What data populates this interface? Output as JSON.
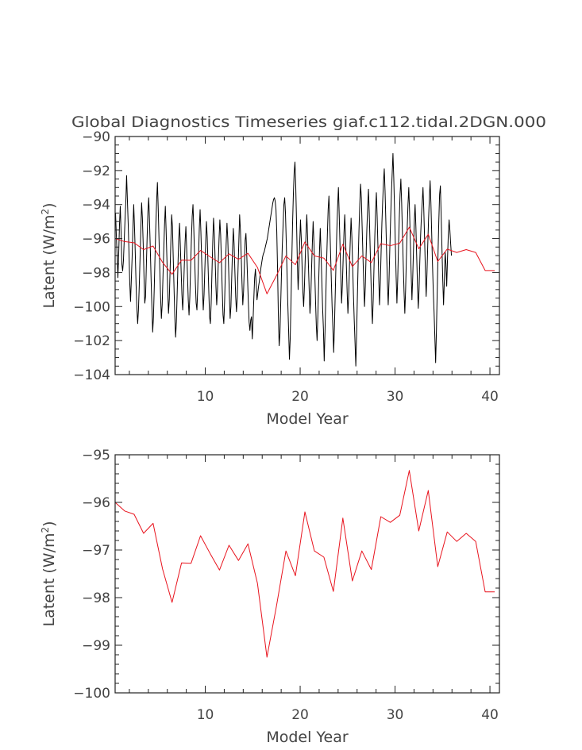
{
  "chart_data": [
    {
      "type": "line",
      "title": "Global Diagnostics Timeseries giaf.c112.tidal.2DGN.000",
      "xlabel": "Model Year",
      "ylabel": "Latent (W/m²)",
      "ylabel_main": "Latent (W/m",
      "ylabel_sup": "2",
      "ylabel_close": ")",
      "xlim": [
        0.5,
        41
      ],
      "ylim": [
        -104,
        -90
      ],
      "xticks": [
        10,
        20,
        30,
        40
      ],
      "yticks": [
        -104,
        -102,
        -100,
        -98,
        -96,
        -94,
        -92,
        -90
      ],
      "grid": false,
      "series": [
        {
          "color": "#000000",
          "x_start": 0.542,
          "x_step": 0.0833,
          "values": [
            -94.5,
            -95.8,
            -97.0,
            -98.3,
            -96.9,
            -95.2,
            -94.1,
            -95.6,
            -97.5,
            -97.9,
            -97.3,
            -96.1,
            -94.9,
            -93.9,
            -92.3,
            -93.7,
            -95.1,
            -96.8,
            -98.6,
            -99.7,
            -98.4,
            -97.1,
            -95.4,
            -94.0,
            -95.3,
            -96.9,
            -98.7,
            -100.1,
            -101.0,
            -100.2,
            -98.8,
            -97.2,
            -95.5,
            -93.9,
            -94.8,
            -96.3,
            -98.2,
            -99.8,
            -99.4,
            -97.6,
            -95.9,
            -94.4,
            -93.6,
            -95.0,
            -96.6,
            -98.4,
            -100.0,
            -101.5,
            -100.6,
            -98.9,
            -97.0,
            -95.2,
            -93.8,
            -92.7,
            -94.2,
            -96.0,
            -97.8,
            -99.4,
            -100.7,
            -99.9,
            -98.3,
            -96.7,
            -95.2,
            -94.1,
            -95.5,
            -97.2,
            -99.0,
            -100.4,
            -99.6,
            -97.9,
            -96.2,
            -94.6,
            -95.3,
            -97.1,
            -98.9,
            -100.6,
            -101.8,
            -100.9,
            -99.2,
            -97.5,
            -96.0,
            -95.1,
            -96.4,
            -97.9,
            -99.3,
            -100.2,
            -99.1,
            -97.6,
            -96.2,
            -95.3,
            -96.6,
            -98.1,
            -99.6,
            -100.5,
            -99.4,
            -97.7,
            -96.0,
            -94.7,
            -94.0,
            -95.4,
            -97.0,
            -98.6,
            -99.8,
            -100.2,
            -98.9,
            -97.1,
            -95.4,
            -94.3,
            -95.6,
            -97.3,
            -98.9,
            -100.2,
            -99.3,
            -97.8,
            -96.3,
            -95.0,
            -95.9,
            -97.5,
            -99.1,
            -100.6,
            -101.0,
            -99.8,
            -98.0,
            -96.2,
            -94.8,
            -95.7,
            -97.2,
            -98.8,
            -99.9,
            -99.0,
            -97.4,
            -96.0,
            -94.9,
            -95.8,
            -97.4,
            -99.0,
            -100.5,
            -101.0,
            -99.7,
            -97.9,
            -96.3,
            -95.1,
            -96.0,
            -97.6,
            -99.3,
            -100.7,
            -100.0,
            -98.3,
            -96.7,
            -95.4,
            -96.3,
            -97.9,
            -99.4,
            -100.3,
            -99.5,
            -97.8,
            -96.2,
            -94.6,
            -95.5,
            -97.0,
            -98.6,
            -99.9,
            -99.1,
            -97.6,
            -96.1,
            -95.7,
            -96.9,
            -98.3,
            -99.7,
            -100.9,
            -101.4,
            -100.8,
            -100.6,
            -101.9,
            -100.8,
            -99.5,
            -98.3,
            -97.8,
            -98.7,
            -99.6,
            -99.2,
            -98.8,
            -98.5,
            -98.1,
            -97.7,
            -97.4,
            -97.1,
            -96.9,
            -96.8,
            -96.6,
            -96.4,
            -96.2,
            -96.0,
            -95.7,
            -95.4,
            -95.1,
            -94.8,
            -94.5,
            -94.2,
            -93.9,
            -93.7,
            -93.6,
            -93.8,
            -94.3,
            -95.6,
            -97.8,
            -100.5,
            -102.3,
            -101.6,
            -99.8,
            -98.0,
            -96.4,
            -95.2,
            -94.0,
            -93.6,
            -94.5,
            -96.2,
            -98.1,
            -99.9,
            -101.4,
            -103.1,
            -101.9,
            -99.7,
            -97.3,
            -95.1,
            -93.4,
            -92.1,
            -91.5,
            -92.9,
            -95.0,
            -97.3,
            -99.0,
            -97.8,
            -96.3,
            -94.9,
            -96.0,
            -97.6,
            -99.1,
            -100.0,
            -98.8,
            -97.2,
            -95.7,
            -94.6,
            -95.9,
            -97.5,
            -99.0,
            -100.4,
            -99.5,
            -97.8,
            -96.3,
            -95.0,
            -96.2,
            -97.9,
            -99.6,
            -101.1,
            -102.0,
            -100.5,
            -98.6,
            -96.8,
            -95.4,
            -96.8,
            -98.5,
            -100.1,
            -101.3,
            -103.2,
            -101.5,
            -99.5,
            -97.5,
            -95.8,
            -94.3,
            -93.5,
            -95.0,
            -96.7,
            -98.4,
            -100.0,
            -101.3,
            -102.7,
            -101.1,
            -99.2,
            -97.3,
            -95.5,
            -94.1,
            -93.0,
            -94.6,
            -96.4,
            -98.2,
            -99.8,
            -98.7,
            -97.2,
            -95.7,
            -94.6,
            -95.9,
            -97.5,
            -99.1,
            -100.4,
            -99.3,
            -97.6,
            -96.1,
            -94.8,
            -95.9,
            -97.6,
            -99.3,
            -100.8,
            -102.1,
            -103.5,
            -101.6,
            -99.4,
            -97.3,
            -95.5,
            -94.0,
            -92.8,
            -93.6,
            -95.3,
            -97.0,
            -98.6,
            -100.0,
            -98.8,
            -97.0,
            -95.4,
            -94.2,
            -93.1,
            -94.5,
            -96.3,
            -98.1,
            -99.9,
            -101.0,
            -99.6,
            -97.7,
            -95.9,
            -94.4,
            -93.3,
            -94.7,
            -96.5,
            -98.3,
            -99.9,
            -98.6,
            -96.8,
            -95.1,
            -93.8,
            -92.7,
            -91.9,
            -93.2,
            -95.0,
            -96.9,
            -98.6,
            -99.9,
            -98.5,
            -96.6,
            -94.9,
            -93.4,
            -92.2,
            -91.0,
            -92.4,
            -94.3,
            -96.3,
            -98.2,
            -99.8,
            -98.4,
            -96.5,
            -94.8,
            -93.4,
            -92.5,
            -93.9,
            -95.7,
            -97.5,
            -99.1,
            -100.4,
            -99.0,
            -97.1,
            -95.4,
            -94.0,
            -93.0,
            -94.4,
            -96.2,
            -98.0,
            -99.6,
            -98.3,
            -96.6,
            -95.0,
            -94.0,
            -95.3,
            -97.0,
            -98.7,
            -100.1,
            -99.0,
            -97.3,
            -95.8,
            -94.7,
            -93.9,
            -93.0,
            -94.3,
            -96.0,
            -97.8,
            -99.4,
            -98.1,
            -96.4,
            -94.9,
            -93.7,
            -92.6,
            -93.9,
            -95.7,
            -97.5,
            -99.1,
            -100.3,
            -101.8,
            -103.3,
            -101.4,
            -99.1,
            -96.9,
            -95.0,
            -93.4,
            -92.9,
            -94.7,
            -96.6,
            -98.4,
            -99.9,
            -98.5,
            -96.8,
            -97.5,
            -98.8,
            -97.2,
            -95.8,
            -94.9,
            -95.5,
            -96.3,
            -97.0
          ]
        },
        {
          "color": "#e8141e",
          "x": [
            0.5,
            1.5,
            2.5,
            3.5,
            4.5,
            5.5,
            6.5,
            7.5,
            8.5,
            9.5,
            10.5,
            11.5,
            12.5,
            13.5,
            14.5,
            15.5,
            16.5,
            17.5,
            18.5,
            19.5,
            20.5,
            21.5,
            22.5,
            23.5,
            24.5,
            25.5,
            26.5,
            27.5,
            28.5,
            29.5,
            30.5,
            31.5,
            32.5,
            33.5,
            34.5,
            35.5,
            36.5,
            37.5,
            38.5,
            39.5,
            40.5
          ],
          "values": [
            -96.0,
            -96.18,
            -96.25,
            -96.65,
            -96.44,
            -97.4,
            -98.1,
            -97.27,
            -97.28,
            -96.7,
            -97.07,
            -97.42,
            -96.9,
            -97.22,
            -96.87,
            -97.7,
            -99.25,
            -98.18,
            -97.02,
            -97.54,
            -96.2,
            -97.02,
            -97.15,
            -97.87,
            -96.33,
            -97.65,
            -97.02,
            -97.41,
            -96.3,
            -96.42,
            -96.27,
            -95.33,
            -96.6,
            -95.75,
            -97.35,
            -96.62,
            -96.82,
            -96.65,
            -96.82,
            -97.88,
            -97.88
          ]
        }
      ]
    },
    {
      "type": "line",
      "title": "",
      "xlabel": "Model Year",
      "ylabel": "Latent (W/m²)",
      "ylabel_main": "Latent (W/m",
      "ylabel_sup": "2",
      "ylabel_close": ")",
      "xlim": [
        0.5,
        41
      ],
      "ylim": [
        -100,
        -95
      ],
      "xticks": [
        10,
        20,
        30,
        40
      ],
      "yticks": [
        -100,
        -99,
        -98,
        -97,
        -96,
        -95
      ],
      "grid": false,
      "series": [
        {
          "color": "#e8141e",
          "x": [
            0.5,
            1.5,
            2.5,
            3.5,
            4.5,
            5.5,
            6.5,
            7.5,
            8.5,
            9.5,
            10.5,
            11.5,
            12.5,
            13.5,
            14.5,
            15.5,
            16.5,
            17.5,
            18.5,
            19.5,
            20.5,
            21.5,
            22.5,
            23.5,
            24.5,
            25.5,
            26.5,
            27.5,
            28.5,
            29.5,
            30.5,
            31.5,
            32.5,
            33.5,
            34.5,
            35.5,
            36.5,
            37.5,
            38.5,
            39.5,
            40.5
          ],
          "values": [
            -96.0,
            -96.18,
            -96.25,
            -96.65,
            -96.44,
            -97.4,
            -98.1,
            -97.27,
            -97.28,
            -96.7,
            -97.07,
            -97.42,
            -96.9,
            -97.22,
            -96.87,
            -97.7,
            -99.25,
            -98.18,
            -97.02,
            -97.54,
            -96.2,
            -97.02,
            -97.15,
            -97.87,
            -96.33,
            -97.65,
            -97.02,
            -97.41,
            -96.3,
            -96.42,
            -96.27,
            -95.33,
            -96.6,
            -95.75,
            -97.35,
            -96.62,
            -96.82,
            -96.65,
            -96.82,
            -97.88,
            -97.88
          ]
        }
      ]
    }
  ]
}
